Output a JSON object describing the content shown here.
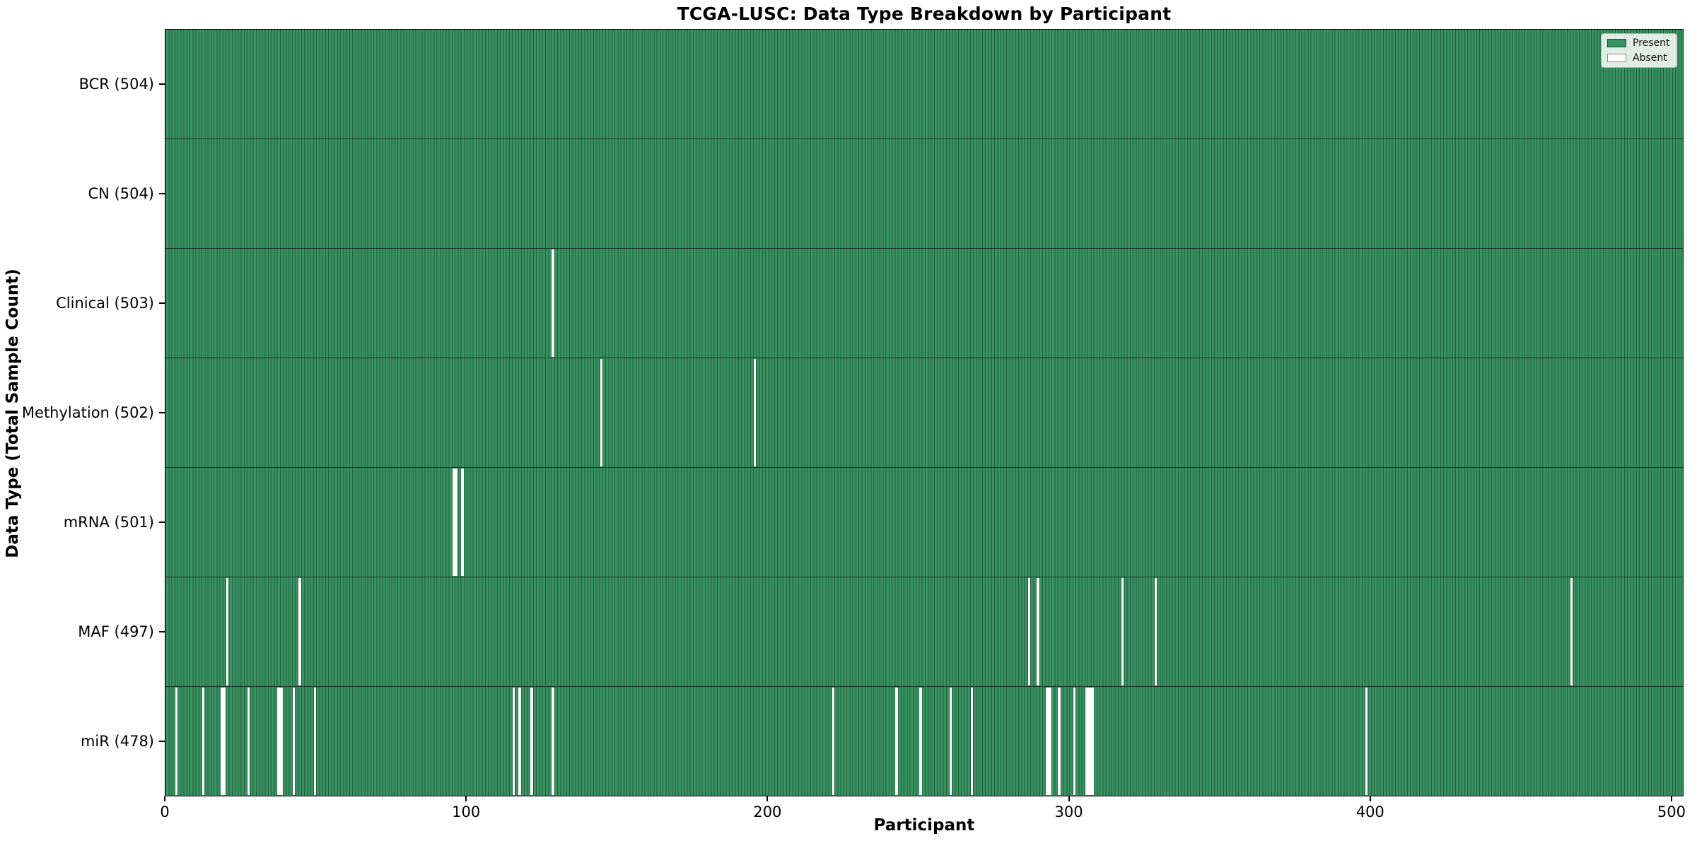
{
  "title": "TCGA-LUSC: Data Type Breakdown by Participant",
  "xlabel": "Participant",
  "ylabel": "Data Type (Total Sample Count)",
  "legend": {
    "present_label": "Present",
    "absent_label": "Absent"
  },
  "colors": {
    "present_fill": "#3a9162",
    "present_edge": "#1f5e3b",
    "absent": "#ffffff",
    "axis": "#000000"
  },
  "chart_data": {
    "type": "heatmap",
    "title": "TCGA-LUSC: Data Type Breakdown by Participant",
    "xlabel": "Participant",
    "ylabel": "Data Type (Total Sample Count)",
    "x_ticks": [
      0,
      100,
      200,
      300,
      400,
      500
    ],
    "x_range": [
      0,
      504
    ],
    "total_participants": 504,
    "legend_entries": [
      {
        "label": "Present",
        "color": "#3a9162"
      },
      {
        "label": "Absent",
        "color": "#ffffff"
      }
    ],
    "rows": [
      {
        "key": "bcr",
        "label": "BCR (504)",
        "data_type": "BCR",
        "count": 504,
        "absent_participants": []
      },
      {
        "key": "cn",
        "label": "CN (504)",
        "data_type": "CN",
        "count": 504,
        "absent_participants": []
      },
      {
        "key": "clinical",
        "label": "Clinical (503)",
        "data_type": "Clinical",
        "count": 503,
        "absent_participants": [
          128
        ]
      },
      {
        "key": "methylation",
        "label": "Methylation (502)",
        "data_type": "Methylation",
        "count": 502,
        "absent_participants": [
          144,
          195
        ]
      },
      {
        "key": "mrna",
        "label": "mRNA (501)",
        "data_type": "mRNA",
        "count": 501,
        "absent_participants": [
          95,
          96,
          98
        ]
      },
      {
        "key": "maf",
        "label": "MAF (497)",
        "data_type": "MAF",
        "count": 497,
        "absent_participants": [
          20,
          44,
          286,
          289,
          317,
          328,
          466
        ]
      },
      {
        "key": "mir",
        "label": "miR (478)",
        "data_type": "miR",
        "count": 478,
        "absent_participants": [
          3,
          12,
          18,
          19,
          27,
          37,
          38,
          42,
          49,
          115,
          117,
          121,
          128,
          221,
          242,
          250,
          260,
          267,
          292,
          293,
          296,
          301,
          305,
          306,
          307,
          398
        ]
      }
    ]
  }
}
